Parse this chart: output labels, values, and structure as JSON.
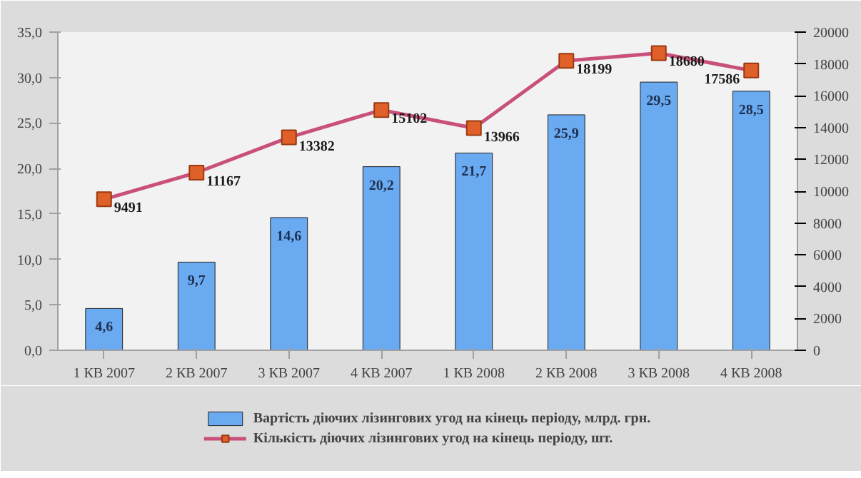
{
  "chart_data": {
    "type": "bar",
    "categories": [
      "1 КВ 2007",
      "2 КВ 2007",
      "3 КВ 2007",
      "4 КВ 2007",
      "1 КВ 2008",
      "2 КВ 2008",
      "3 КВ 2008",
      "4 КВ 2008"
    ],
    "series": [
      {
        "name": "Вартість діючих лізингових угод на кінець періоду, млрд. грн.",
        "color": "#6aaaf0",
        "values": [
          4.6,
          9.7,
          14.6,
          20.2,
          21.7,
          25.9,
          29.5,
          28.5
        ],
        "value_labels": [
          "4,6",
          "9,7",
          "14,6",
          "20,2",
          "21,7",
          "25,9",
          "29,5",
          "28,5"
        ]
      },
      {
        "name": "Кількість діючих лізингових угод на кінець періоду, шт.",
        "type": "line",
        "axis": "y2",
        "color": "#c9507a",
        "marker": "square",
        "values": [
          9491,
          11167,
          13382,
          15102,
          13966,
          18199,
          18680,
          17586
        ],
        "value_labels": [
          "9491",
          "11167",
          "13382",
          "15102",
          "13966",
          "18199",
          "18680",
          "17586"
        ]
      }
    ],
    "ylim": [
      0,
      35
    ],
    "yticks": [
      {
        "value": 0,
        "label": "0,0"
      },
      {
        "value": 5,
        "label": "5,0"
      },
      {
        "value": 10,
        "label": "10,0"
      },
      {
        "value": 15,
        "label": "15,0"
      },
      {
        "value": 20,
        "label": "20,0"
      },
      {
        "value": 25,
        "label": "25,0"
      },
      {
        "value": 30,
        "label": "30,0"
      },
      {
        "value": 35,
        "label": "35,0"
      }
    ],
    "y2lim": [
      0,
      20000
    ],
    "y2ticks": [
      0,
      2000,
      4000,
      6000,
      8000,
      10000,
      12000,
      14000,
      16000,
      18000,
      20000
    ],
    "grid": false,
    "legend": "bottom"
  }
}
